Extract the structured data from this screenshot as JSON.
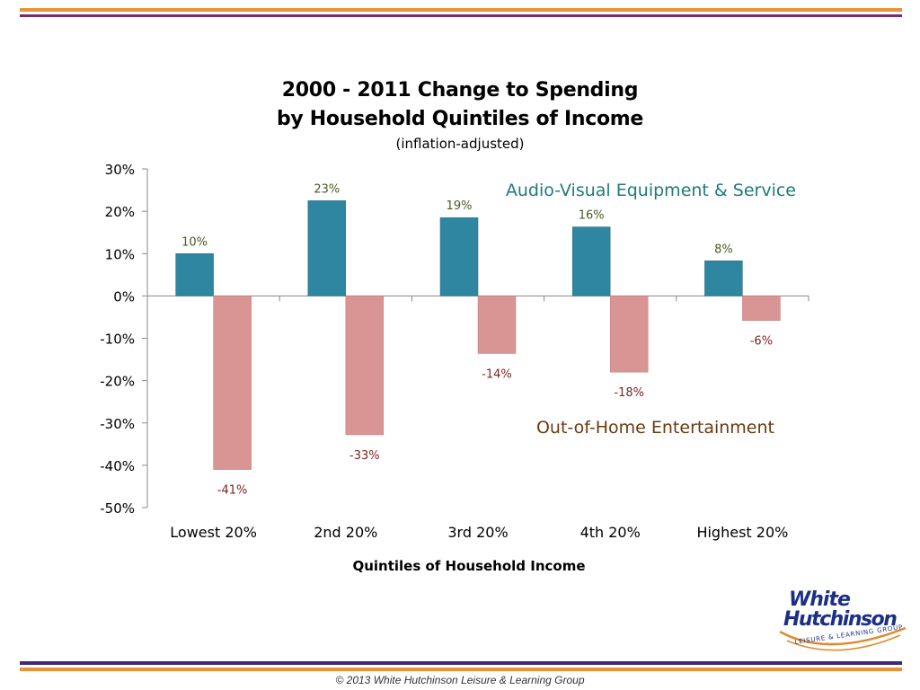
{
  "colors": {
    "band_orange": "#e8923a",
    "band_purple": "#7b2a6e",
    "footer_band_purple": "#3e2a7a",
    "series_av": "#2f86a0",
    "series_ooh": "#d99593",
    "av_label_color": "#4a5a22",
    "ooh_label_color": "#7a2424",
    "av_name_color": "#1f7a7a",
    "ooh_name_color": "#6b3a10",
    "logo_blue": "#1b2f86",
    "logo_swoosh": "#e0892e"
  },
  "logo": {
    "line1": "White",
    "line2": "Hutchinson",
    "tagline": "LEISURE & LEARNING GROUP",
    "icon": "swoosh-logo-icon"
  },
  "footer": {
    "text": "© 2013 White Hutchinson Leisure & Learning Group"
  },
  "chart_data": {
    "type": "bar",
    "title": "2000 - 2011 Change to Spending",
    "title_line2": "by Household Quintiles of Income",
    "subtitle": "(inflation-adjusted)",
    "xlabel": "Quintiles of Household Income",
    "ylabel": "",
    "categories": [
      "Lowest 20%",
      "2nd 20%",
      "3rd 20%",
      "4th 20%",
      "Highest 20%"
    ],
    "ylim": [
      -50,
      30
    ],
    "yticks": [
      30,
      20,
      10,
      0,
      -10,
      -20,
      -30,
      -40,
      -50
    ],
    "ytick_labels": [
      "30%",
      "20%",
      "10%",
      "0%",
      "-10%",
      "-20%",
      "-30%",
      "-40%",
      "-50%"
    ],
    "grid": false,
    "legend": "inline labels",
    "series": [
      {
        "name": "Audio-Visual Equipment & Service",
        "values": [
          10,
          22.5,
          18.5,
          16.3,
          8.3
        ],
        "data_labels": [
          "10%",
          "23%",
          "19%",
          "16%",
          "8%"
        ],
        "color": "#2f86a0"
      },
      {
        "name": "Out-of-Home Entertainment",
        "values": [
          -41,
          -32.8,
          -13.6,
          -18,
          -5.8
        ],
        "data_labels": [
          "-41%",
          "-33%",
          "-14%",
          "-18%",
          "-6%"
        ],
        "color": "#d99593"
      }
    ]
  }
}
